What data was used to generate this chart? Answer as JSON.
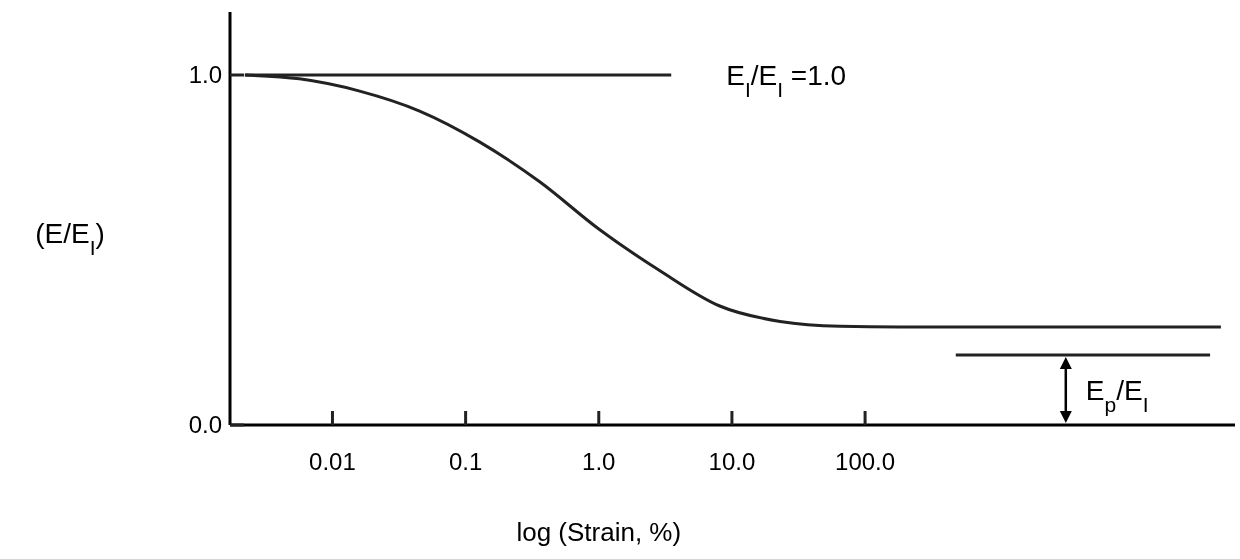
{
  "chart_data": {
    "type": "line",
    "xlabel": "log (Strain, %)",
    "ylabel": "(E/E$_{I}$)",
    "log": "x",
    "grid": false,
    "marker": "none",
    "line_style": "solid",
    "xlim": [
      0.0017,
      60000
    ],
    "ylim": [
      0,
      1.18
    ],
    "xticks": [
      0.01,
      0.1,
      {
        "value": 1,
        "label": "1.0"
      },
      {
        "value": 10,
        "label": "10.0"
      },
      {
        "value": 100,
        "label": "100.0"
      }
    ],
    "yticks": [
      {
        "value": 0,
        "label": "0.0"
      },
      {
        "value": 1,
        "label": "1.0"
      }
    ],
    "series": [
      {
        "color": "#222222",
        "x": [
          0.0022,
          0.00565,
          0.016,
          0.0451,
          0.127,
          0.36,
          1.0,
          2.9,
          8.1,
          23,
          65,
          182,
          47000
        ],
        "values": [
          1.0,
          0.989,
          0.954,
          0.897,
          0.809,
          0.695,
          0.56,
          0.44,
          0.34,
          0.296,
          0.282,
          0.28,
          0.28
        ]
      },
      {
        "color": "#222222",
        "x": [
          0.0022,
          3.5
        ],
        "values": [
          1.0,
          1.0
        ]
      },
      {
        "color": "#222222",
        "x": [
          480,
          39000
        ],
        "values": [
          0.2,
          0.2
        ]
      }
    ],
    "annotations": [
      "E$_{I}$/E$_{I}$ =1.0",
      "E$_{p}$/E$_{I}$"
    ]
  }
}
